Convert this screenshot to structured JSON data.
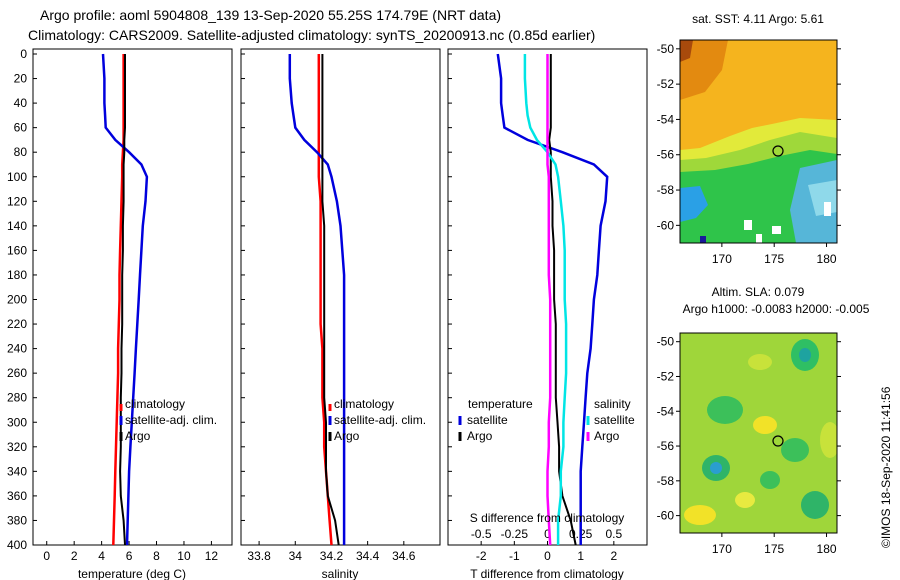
{
  "header": {
    "line1": "Argo profile: aoml 5904808_139 13-Sep-2020 55.25S 174.79E (NRT data)",
    "line2": "Climatology: CARS2009. Satellite-adjusted climatology: synTS_20200913.nc (0.85d earlier)"
  },
  "footer": {
    "credit": "©IMOS 18-Sep-2020 11:41:56"
  },
  "colors": {
    "climatology": "#ff0000",
    "satellite": "#0000dd",
    "argo": "#000000",
    "salinity_satellite": "#00e5e5",
    "salinity_argo": "#ff00ff"
  },
  "depth_ticks": [
    "0",
    "20",
    "40",
    "60",
    "80",
    "100",
    "120",
    "140",
    "160",
    "180",
    "200",
    "220",
    "240",
    "260",
    "280",
    "300",
    "320",
    "340",
    "360",
    "380",
    "400"
  ],
  "chart_data": [
    {
      "type": "line",
      "title": "",
      "xlabel": "temperature (deg C)",
      "ylabel": "",
      "xlim": [
        -1,
        13.5
      ],
      "ylim": [
        400,
        0
      ],
      "xticks": [
        "0",
        "2",
        "4",
        "6",
        "8",
        "10",
        "12"
      ],
      "legend": [
        "climatology",
        "satellite-adj. clim.",
        "Argo"
      ],
      "legend_position": "lower-right",
      "depth": [
        0,
        20,
        40,
        50,
        60,
        70,
        80,
        90,
        100,
        120,
        140,
        160,
        180,
        200,
        220,
        240,
        260,
        280,
        300,
        320,
        340,
        360,
        380,
        400
      ],
      "series": [
        {
          "name": "climatology",
          "color": "red",
          "values": [
            5.6,
            5.6,
            5.6,
            5.6,
            5.6,
            5.6,
            5.55,
            5.5,
            5.5,
            5.45,
            5.4,
            5.35,
            5.3,
            5.3,
            5.25,
            5.2,
            5.2,
            5.15,
            5.1,
            5.05,
            5.0,
            4.95,
            4.9,
            4.85
          ]
        },
        {
          "name": "satellite-adj. clim.",
          "color": "blue",
          "values": [
            4.1,
            4.2,
            4.2,
            4.25,
            4.3,
            5.0,
            6.0,
            6.9,
            7.3,
            7.2,
            7.0,
            6.9,
            6.8,
            6.7,
            6.6,
            6.5,
            6.4,
            6.3,
            6.2,
            6.1,
            6.0,
            5.95,
            5.9,
            5.85
          ]
        },
        {
          "name": "Argo",
          "color": "black",
          "values": [
            5.7,
            5.7,
            5.7,
            5.7,
            5.7,
            5.65,
            5.65,
            5.6,
            5.6,
            5.6,
            5.55,
            5.55,
            5.5,
            5.5,
            5.5,
            5.45,
            5.45,
            5.4,
            5.4,
            5.4,
            5.35,
            5.4,
            5.6,
            5.7
          ]
        }
      ]
    },
    {
      "type": "line",
      "title": "",
      "xlabel": "salinity",
      "ylabel": "",
      "xlim": [
        33.7,
        34.8
      ],
      "ylim": [
        400,
        0
      ],
      "xticks": [
        "33.8",
        "34",
        "34.2",
        "34.4",
        "34.6"
      ],
      "legend": [
        "climatology",
        "satellite-adj. clim.",
        "Argo"
      ],
      "legend_position": "lower-right",
      "depth": [
        0,
        20,
        40,
        50,
        60,
        70,
        80,
        90,
        100,
        120,
        140,
        160,
        180,
        200,
        220,
        240,
        260,
        280,
        300,
        320,
        340,
        360,
        380,
        400
      ],
      "series": [
        {
          "name": "climatology",
          "color": "red",
          "values": [
            34.13,
            34.13,
            34.13,
            34.13,
            34.13,
            34.13,
            34.13,
            34.13,
            34.13,
            34.14,
            34.14,
            34.14,
            34.14,
            34.14,
            34.14,
            34.15,
            34.15,
            34.15,
            34.16,
            34.16,
            34.17,
            34.18,
            34.19,
            34.2
          ]
        },
        {
          "name": "satellite-adj. clim.",
          "color": "blue",
          "values": [
            33.97,
            33.97,
            33.98,
            33.99,
            34.0,
            34.05,
            34.12,
            34.18,
            34.2,
            34.23,
            34.25,
            34.26,
            34.27,
            34.27,
            34.27,
            34.27,
            34.27,
            34.27,
            34.27,
            34.27,
            34.27,
            34.27,
            34.27,
            34.27
          ]
        },
        {
          "name": "Argo",
          "color": "black",
          "values": [
            34.15,
            34.15,
            34.15,
            34.15,
            34.15,
            34.15,
            34.15,
            34.15,
            34.15,
            34.15,
            34.16,
            34.16,
            34.16,
            34.16,
            34.16,
            34.16,
            34.16,
            34.16,
            34.17,
            34.17,
            34.17,
            34.18,
            34.22,
            34.24
          ]
        }
      ]
    },
    {
      "type": "line",
      "title": "",
      "xlabel": "T difference from climatology",
      "xlabel_secondary": "S difference from climatology",
      "ylabel": "",
      "xlim": [
        -3,
        3
      ],
      "ylim": [
        400,
        0
      ],
      "xticks": [
        "-2",
        "-1",
        "0",
        "1",
        "2"
      ],
      "xticks_secondary": [
        "-0.5",
        "-0.25",
        "0",
        "0.25",
        "0.5"
      ],
      "legend_left_title": "temperature",
      "legend_left": [
        "satellite",
        "Argo"
      ],
      "legend_right_title": "salinity",
      "legend_right": [
        "satellite",
        "Argo"
      ],
      "legend_position": "lower",
      "depth": [
        0,
        20,
        40,
        50,
        60,
        70,
        80,
        90,
        100,
        120,
        140,
        160,
        180,
        200,
        220,
        240,
        260,
        280,
        300,
        320,
        340,
        360,
        380,
        400
      ],
      "series": [
        {
          "name": "temperature satellite",
          "color": "blue",
          "values": [
            -1.5,
            -1.4,
            -1.4,
            -1.35,
            -1.3,
            -0.6,
            0.45,
            1.4,
            1.8,
            1.75,
            1.6,
            1.55,
            1.5,
            1.4,
            1.35,
            1.3,
            1.2,
            1.15,
            1.1,
            1.05,
            1.0,
            1.0,
            1.0,
            1.0
          ]
        },
        {
          "name": "temperature Argo",
          "color": "black",
          "values": [
            0.1,
            0.1,
            0.1,
            0.1,
            0.1,
            0.05,
            0.1,
            0.1,
            0.1,
            0.15,
            0.15,
            0.2,
            0.2,
            0.2,
            0.25,
            0.25,
            0.25,
            0.25,
            0.3,
            0.35,
            0.35,
            0.45,
            0.7,
            0.85
          ]
        },
        {
          "name": "salinity satellite",
          "color": "cyan",
          "values": [
            -0.17,
            -0.17,
            -0.16,
            -0.15,
            -0.13,
            -0.08,
            0.0,
            0.06,
            0.08,
            0.1,
            0.12,
            0.13,
            0.13,
            0.13,
            0.14,
            0.14,
            0.14,
            0.13,
            0.12,
            0.12,
            0.1,
            0.1,
            0.08,
            0.08
          ]
        },
        {
          "name": "salinity Argo",
          "color": "magenta",
          "values": [
            0.0,
            0.0,
            0.0,
            0.0,
            0.0,
            0.0,
            0.0,
            0.0,
            0.01,
            0.01,
            0.01,
            0.01,
            0.01,
            0.02,
            0.02,
            0.02,
            0.02,
            0.02,
            0.01,
            0.01,
            0.0,
            0.0,
            0.01,
            0.02
          ]
        }
      ]
    },
    {
      "type": "heatmap",
      "title": "sat. SST: 4.11 Argo: 5.61",
      "xlabel": "",
      "ylabel": "",
      "xlim": [
        166,
        181
      ],
      "ylim": [
        -61,
        -49.5
      ],
      "xticks": [
        "170",
        "175",
        "180"
      ],
      "yticks": [
        "-50",
        "-52",
        "-54",
        "-56",
        "-58",
        "-60"
      ],
      "marker": {
        "lon": 174.79,
        "lat": -55.25
      }
    },
    {
      "type": "heatmap",
      "title": "Altim. SLA: 0.079",
      "subtitle": "Argo h1000: -0.0083 h2000: -0.005",
      "xlabel": "",
      "ylabel": "",
      "xlim": [
        166,
        181
      ],
      "ylim": [
        -61,
        -49.5
      ],
      "xticks": [
        "170",
        "175",
        "180"
      ],
      "yticks": [
        "-50",
        "-52",
        "-54",
        "-56",
        "-58",
        "-60"
      ],
      "marker": {
        "lon": 174.79,
        "lat": -55.25
      }
    }
  ]
}
